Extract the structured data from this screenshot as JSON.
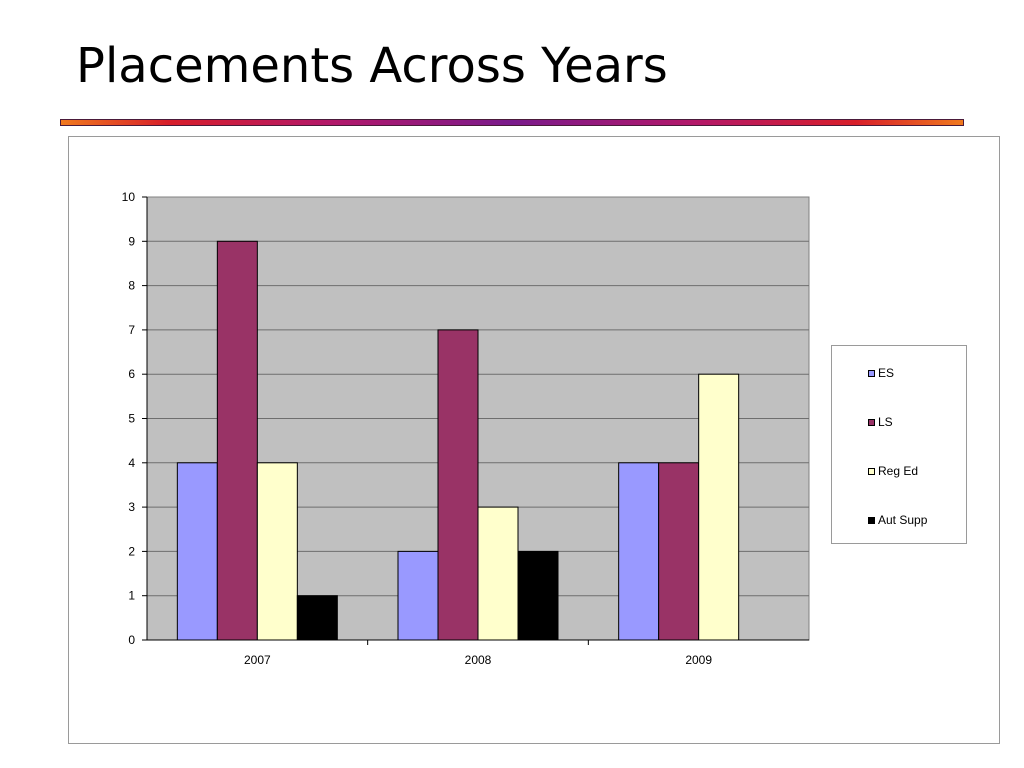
{
  "slide": {
    "title": "Placements Across Years"
  },
  "chart_data": {
    "type": "bar",
    "categories": [
      "2007",
      "2008",
      "2009"
    ],
    "series": [
      {
        "name": "ES",
        "values": [
          4,
          2,
          4
        ],
        "color": "#9999ff"
      },
      {
        "name": "LS",
        "values": [
          9,
          7,
          4
        ],
        "color": "#993366"
      },
      {
        "name": "Reg Ed",
        "values": [
          4,
          3,
          6
        ],
        "color": "#ffffcc"
      },
      {
        "name": "Aut Supp",
        "values": [
          1,
          2,
          0
        ],
        "color": "#000000"
      }
    ],
    "yticks": [
      "0",
      "1",
      "2",
      "3",
      "4",
      "5",
      "6",
      "7",
      "8",
      "9",
      "10"
    ],
    "ylim": [
      0,
      10
    ],
    "title": "",
    "xlabel": "",
    "ylabel": "",
    "grid": true,
    "plot_background": "#c0c0c0",
    "legend_position": "right"
  }
}
